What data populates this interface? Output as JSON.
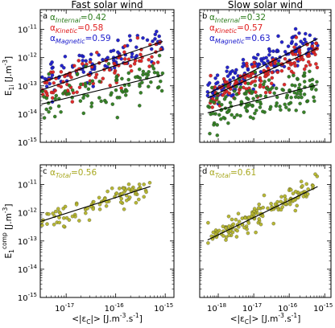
{
  "chart_data": [
    {
      "type": "scatter",
      "panel_label": "a",
      "title": "Fast solar wind",
      "ylabel": "E",
      "ylabel_sub": "1i",
      "ylabel_unit": " [J.m",
      "ylabel_unit_sup": "-3",
      "ylabel_unit_end": "]",
      "xscale": "log",
      "yscale": "log",
      "xlim": [
        3e-18,
        1.5e-15
      ],
      "ylim": [
        1e-15,
        5e-11
      ],
      "yticks": [
        {
          "v": 1e-11,
          "label": "10",
          "exp": "-11"
        },
        {
          "v": 1e-12,
          "label": "10",
          "exp": "-12"
        },
        {
          "v": 1e-13,
          "label": "10",
          "exp": "-13"
        },
        {
          "v": 1e-14,
          "label": "10",
          "exp": "-14"
        },
        {
          "v": 1e-15,
          "label": "10",
          "exp": "-15"
        }
      ],
      "xticks": [
        1e-17,
        1e-16,
        1e-15
      ],
      "annotations": [
        {
          "symbol": "α",
          "sub": "Internal",
          "value": "=0.42",
          "color": "#2e7d1e"
        },
        {
          "symbol": "α",
          "sub": "Kinetic",
          "value": "=0.58",
          "color": "#e02020"
        },
        {
          "symbol": "α",
          "sub": "Magnetic",
          "value": "=0.59",
          "color": "#1a1acc"
        }
      ],
      "series": [
        {
          "name": "Magnetic",
          "color": "#1a1acc",
          "slope": 0.59,
          "log_intercept": -2.55,
          "x_range": [
            -17.5,
            -15.05
          ],
          "scatter": 0.28,
          "n": 95
        },
        {
          "name": "Kinetic",
          "color": "#e02020",
          "slope": 0.58,
          "log_intercept": -3.0,
          "x_range": [
            -17.5,
            -15.05
          ],
          "scatter": 0.3,
          "n": 95
        },
        {
          "name": "Internal",
          "color": "#2e7d1e",
          "slope": 0.42,
          "log_intercept": -6.3,
          "x_range": [
            -17.5,
            -15.05
          ],
          "scatter": 0.45,
          "n": 95
        }
      ]
    },
    {
      "type": "scatter",
      "panel_label": "b",
      "title": "Slow solar wind",
      "xscale": "log",
      "yscale": "log",
      "xlim": [
        3e-19,
        1.5e-15
      ],
      "ylim": [
        1e-15,
        5e-11
      ],
      "xticks": [
        1e-18,
        1e-17,
        1e-16,
        1e-15
      ],
      "annotations": [
        {
          "symbol": "α",
          "sub": "Internal",
          "value": "=0.32",
          "color": "#2e7d1e"
        },
        {
          "symbol": "α",
          "sub": "Kinetic",
          "value": "=0.57",
          "color": "#e02020"
        },
        {
          "symbol": "α",
          "sub": "Magnetic",
          "value": "=0.63",
          "color": "#1a1acc"
        }
      ],
      "series": [
        {
          "name": "Magnetic",
          "color": "#1a1acc",
          "slope": 0.63,
          "log_intercept": -1.75,
          "x_range": [
            -18.3,
            -15.2
          ],
          "scatter": 0.28,
          "n": 150
        },
        {
          "name": "Kinetic",
          "color": "#e02020",
          "slope": 0.57,
          "log_intercept": -3.0,
          "x_range": [
            -18.3,
            -15.2
          ],
          "scatter": 0.3,
          "n": 150
        },
        {
          "name": "Internal",
          "color": "#2e7d1e",
          "slope": 0.32,
          "log_intercept": -8.1,
          "x_range": [
            -18.3,
            -15.2
          ],
          "scatter": 0.45,
          "n": 150
        }
      ]
    },
    {
      "type": "scatter",
      "panel_label": "c",
      "ylabel": "E",
      "ylabel_sub": "1",
      "ylabel_sup": "comp",
      "ylabel_unit": " [J.m",
      "ylabel_unit_sup": "-3",
      "ylabel_unit_end": "]",
      "xlabel": "<|ε",
      "xlabel_sub": "C",
      "xlabel_end": "|> [J.m",
      "xlabel_sup1": "-3",
      "xlabel_mid": ".s",
      "xlabel_sup2": "-1",
      "xlabel_close": "]",
      "xscale": "log",
      "yscale": "log",
      "xlim": [
        3e-18,
        1.5e-15
      ],
      "ylim": [
        1e-15,
        5e-11
      ],
      "yticks": [
        {
          "v": 1e-11,
          "label": "10",
          "exp": "-11"
        },
        {
          "v": 1e-12,
          "label": "10",
          "exp": "-12"
        },
        {
          "v": 1e-13,
          "label": "10",
          "exp": "-13"
        },
        {
          "v": 1e-14,
          "label": "10",
          "exp": "-14"
        },
        {
          "v": 1e-15,
          "label": "10",
          "exp": "-15"
        }
      ],
      "xticks": [
        {
          "v": 1e-17,
          "label": "10",
          "exp": "-17"
        },
        {
          "v": 1e-16,
          "label": "10",
          "exp": "-16"
        },
        {
          "v": 1e-15,
          "label": "10",
          "exp": "-15"
        }
      ],
      "annotations": [
        {
          "symbol": "α",
          "sub": "Total",
          "value": "=0.56",
          "color": "#a8a820"
        }
      ],
      "series": [
        {
          "name": "Total",
          "color": "#b5b52a",
          "slope": 0.56,
          "log_intercept": -2.5,
          "x_range": [
            -17.5,
            -15.3
          ],
          "scatter": 0.2,
          "n": 95
        }
      ]
    },
    {
      "type": "scatter",
      "panel_label": "d",
      "xlabel": "<|ε",
      "xlabel_sub": "C",
      "xlabel_end": "|> [J.m",
      "xlabel_sup1": "-3",
      "xlabel_mid": ".s",
      "xlabel_sup2": "-1",
      "xlabel_close": "]",
      "xscale": "log",
      "yscale": "log",
      "xlim": [
        3e-19,
        1.5e-15
      ],
      "ylim": [
        1e-15,
        5e-11
      ],
      "xticks": [
        {
          "v": 1e-18,
          "label": "10",
          "exp": "-18"
        },
        {
          "v": 1e-17,
          "label": "10",
          "exp": "-17"
        },
        {
          "v": 1e-16,
          "label": "10",
          "exp": "-16"
        },
        {
          "v": 1e-15,
          "label": "10",
          "exp": "-15"
        }
      ],
      "annotations": [
        {
          "symbol": "α",
          "sub": "Total",
          "value": "=0.61",
          "color": "#a8a820"
        }
      ],
      "series": [
        {
          "name": "Total",
          "color": "#b5b52a",
          "slope": 0.61,
          "log_intercept": -1.8,
          "x_range": [
            -18.3,
            -15.2
          ],
          "scatter": 0.2,
          "n": 150
        }
      ]
    }
  ]
}
